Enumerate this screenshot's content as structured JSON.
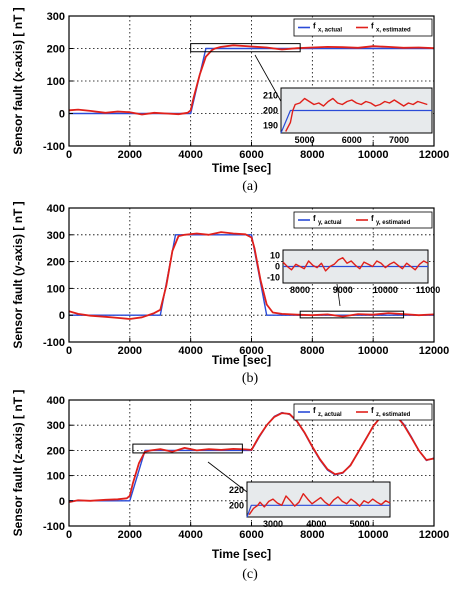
{
  "chart_data": [
    {
      "type": "line",
      "caption": "(a)",
      "xlabel": "Time  [sec]",
      "ylabel": "Sensor fault (x-axis) [ nT ]",
      "xlim": [
        0,
        12000
      ],
      "ylim": [
        -100,
        300
      ],
      "xticks": [
        0,
        2000,
        4000,
        6000,
        8000,
        10000,
        12000
      ],
      "yticks": [
        -100,
        0,
        100,
        200,
        300
      ],
      "grid": true,
      "legend_position": "top-right",
      "colors": {
        "actual": "#2a4bd7",
        "estimated": "#e0201b"
      },
      "series": [
        {
          "name": "f x, actual",
          "name_main": "f",
          "name_sub": "x, actual",
          "color": "#2a4bd7",
          "x": [
            0,
            4000,
            4500,
            12000
          ],
          "y": [
            0,
            0,
            200,
            200
          ]
        },
        {
          "name": "f x, estimated",
          "name_main": "f",
          "name_sub": "x, estimated",
          "color": "#e0201b",
          "x": [
            0,
            300,
            700,
            1200,
            1600,
            2000,
            2400,
            2800,
            3200,
            3600,
            3900,
            4000,
            4100,
            4300,
            4500,
            4700,
            4800,
            5000,
            5400,
            6000,
            6500,
            7000,
            7500,
            8000,
            8500,
            9000,
            9500,
            10000,
            10500,
            11000,
            11500,
            12000
          ],
          "y": [
            10,
            12,
            8,
            2,
            6,
            4,
            -3,
            2,
            0,
            -2,
            2,
            10,
            50,
            120,
            175,
            195,
            200,
            205,
            210,
            206,
            203,
            197,
            201,
            203,
            205,
            204,
            202,
            207,
            205,
            202,
            203,
            201
          ]
        }
      ],
      "annotation_box": {
        "x": [
          4000,
          7600
        ],
        "y": [
          190,
          215
        ]
      },
      "inset": {
        "xlim": [
          4500,
          7700
        ],
        "ylim": [
          185,
          215
        ],
        "xticks": [
          4000,
          5000,
          6000,
          7000
        ],
        "yticks": [
          190,
          200,
          210
        ],
        "series": [
          {
            "color": "#2a4bd7",
            "x": [
              4500,
              4700,
              7700
            ],
            "y": [
              185,
              200,
              200
            ]
          },
          {
            "color": "#e0201b",
            "x": [
              4600,
              4700,
              4750,
              4800,
              4900,
              5000,
              5100,
              5200,
              5300,
              5400,
              5500,
              5600,
              5700,
              5800,
              5900,
              6000,
              6100,
              6200,
              6300,
              6400,
              6500,
              6600,
              6700,
              6800,
              6900,
              7000,
              7100,
              7200,
              7300,
              7400,
              7500,
              7600
            ],
            "y": [
              186,
              192,
              200,
              204,
              205,
              208,
              206,
              204,
              205,
              203,
              206,
              208,
              205,
              204,
              206,
              207,
              205,
              204,
              206,
              205,
              203,
              204,
              206,
              205,
              207,
              205,
              203,
              205,
              204,
              206,
              205,
              204
            ]
          }
        ]
      }
    },
    {
      "type": "line",
      "caption": "(b)",
      "xlabel": "Time  [sec]",
      "ylabel": "Sensor fault (y-axis) [ nT ]",
      "xlim": [
        0,
        12000
      ],
      "ylim": [
        -100,
        400
      ],
      "xticks": [
        0,
        2000,
        4000,
        6000,
        8000,
        10000,
        12000
      ],
      "yticks": [
        -100,
        0,
        100,
        200,
        300,
        400
      ],
      "grid": true,
      "legend_position": "top-right",
      "colors": {
        "actual": "#2a4bd7",
        "estimated": "#e0201b"
      },
      "series": [
        {
          "name": "f y, actual",
          "name_main": "f",
          "name_sub": "y, actual",
          "color": "#2a4bd7",
          "x": [
            0,
            3000,
            3500,
            6000,
            6500,
            12000
          ],
          "y": [
            0,
            0,
            300,
            300,
            0,
            0
          ]
        },
        {
          "name": "f y, estimated",
          "name_main": "f",
          "name_sub": "y, estimated",
          "color": "#e0201b",
          "x": [
            0,
            300,
            700,
            1200,
            1600,
            2000,
            2400,
            2800,
            3000,
            3200,
            3400,
            3600,
            3800,
            4200,
            4600,
            5000,
            5400,
            5800,
            6000,
            6100,
            6300,
            6500,
            6700,
            7000,
            7500,
            8000,
            8500,
            9000,
            9500,
            10000,
            10500,
            11000,
            11500,
            12000
          ],
          "y": [
            15,
            5,
            -2,
            -6,
            -10,
            -14,
            -8,
            8,
            20,
            110,
            240,
            295,
            300,
            305,
            300,
            310,
            305,
            302,
            290,
            250,
            130,
            40,
            10,
            5,
            2,
            0,
            3,
            -5,
            4,
            2,
            8,
            4,
            0,
            3
          ]
        }
      ],
      "annotation_box": {
        "x": [
          7600,
          11000
        ],
        "y": [
          -10,
          15
        ]
      },
      "inset": {
        "xlim": [
          7600,
          11000
        ],
        "ylim": [
          -15,
          15
        ],
        "xticks": [
          8000,
          9000,
          10000,
          11000
        ],
        "yticks": [
          -10,
          0,
          10
        ],
        "series": [
          {
            "color": "#2a4bd7",
            "x": [
              7600,
              11000
            ],
            "y": [
              0,
              0
            ]
          },
          {
            "color": "#e0201b",
            "x": [
              7600,
              7700,
              7800,
              7900,
              8000,
              8100,
              8200,
              8300,
              8400,
              8500,
              8600,
              8700,
              8800,
              8900,
              9000,
              9100,
              9200,
              9300,
              9400,
              9500,
              9600,
              9700,
              9800,
              9900,
              10000,
              10100,
              10200,
              10300,
              10400,
              10500,
              10600,
              10700,
              10800,
              10900,
              11000
            ],
            "y": [
              4,
              0,
              -3,
              2,
              0,
              -2,
              5,
              1,
              -1,
              3,
              -4,
              0,
              2,
              6,
              8,
              3,
              5,
              1,
              -2,
              4,
              2,
              0,
              5,
              3,
              -1,
              2,
              4,
              1,
              -2,
              3,
              0,
              -3,
              2,
              5,
              3
            ]
          }
        ]
      }
    },
    {
      "type": "line",
      "caption": "(c)",
      "xlabel": "Time  [sec]",
      "ylabel": "Sensor fault (z-axis) [ nT ]",
      "xlim": [
        0,
        12000
      ],
      "ylim": [
        -100,
        400
      ],
      "xticks": [
        0,
        2000,
        4000,
        6000,
        8000,
        10000,
        12000
      ],
      "yticks": [
        -100,
        0,
        100,
        200,
        300,
        400
      ],
      "grid": true,
      "legend_position": "top-right",
      "colors": {
        "actual": "#2a4bd7",
        "estimated": "#e0201b"
      },
      "series": [
        {
          "name": "f z, actual",
          "name_main": "f",
          "name_sub": "z, actual",
          "color": "#2a4bd7",
          "x": [
            0,
            2000,
            2500,
            6000,
            6250,
            6500,
            6750,
            7000,
            7250,
            7500,
            7750,
            8000,
            8250,
            8500,
            8750,
            9000,
            9250,
            9500,
            9750,
            10000,
            10250,
            10500,
            10750,
            11000,
            11250,
            11500,
            11750,
            12000
          ],
          "y": [
            0,
            0,
            200,
            200,
            252,
            300,
            335,
            350,
            343,
            314,
            268,
            213,
            162,
            122,
            103,
            110,
            142,
            190,
            245,
            295,
            335,
            350,
            340,
            305,
            255,
            200,
            160,
            170
          ]
        },
        {
          "name": "f z, estimated",
          "name_main": "f",
          "name_sub": "z, estimated",
          "color": "#e0201b",
          "x": [
            0,
            300,
            700,
            1200,
            1600,
            1900,
            2000,
            2100,
            2300,
            2500,
            2700,
            3000,
            3400,
            3800,
            4200,
            4600,
            5000,
            5400,
            5800,
            6000,
            6250,
            6500,
            6750,
            7000,
            7250,
            7500,
            7750,
            8000,
            8250,
            8500,
            8750,
            9000,
            9250,
            9500,
            9750,
            10000,
            10250,
            10500,
            10750,
            11000,
            11250,
            11500,
            11750,
            12000
          ],
          "y": [
            -5,
            2,
            0,
            4,
            6,
            10,
            20,
            70,
            150,
            195,
            200,
            205,
            195,
            210,
            200,
            205,
            202,
            206,
            204,
            202,
            255,
            300,
            333,
            348,
            345,
            315,
            270,
            215,
            165,
            125,
            105,
            112,
            140,
            192,
            243,
            296,
            333,
            348,
            338,
            302,
            252,
            200,
            162,
            168
          ]
        }
      ],
      "annotation_box": {
        "x": [
          2100,
          5700
        ],
        "y": [
          190,
          225
        ]
      },
      "inset": {
        "xlim": [
          2400,
          5700
        ],
        "ylim": [
          185,
          230
        ],
        "xticks": [
          3000,
          4000,
          5000
        ],
        "yticks": [
          200,
          220
        ],
        "series": [
          {
            "color": "#2a4bd7",
            "x": [
              2400,
              2500,
              5700
            ],
            "y": [
              185,
              200,
              200
            ]
          },
          {
            "color": "#e0201b",
            "x": [
              2450,
              2550,
              2650,
              2700,
              2800,
              2900,
              3000,
              3100,
              3200,
              3300,
              3400,
              3500,
              3600,
              3700,
              3800,
              3900,
              4000,
              4100,
              4200,
              4300,
              4400,
              4500,
              4600,
              4700,
              4800,
              4900,
              5000,
              5100,
              5200,
              5300,
              5400,
              5500,
              5600,
              5700
            ],
            "y": [
              188,
              196,
              200,
              204,
              198,
              205,
              208,
              203,
              200,
              212,
              206,
              199,
              204,
              215,
              208,
              202,
              206,
              210,
              204,
              200,
              207,
              211,
              205,
              202,
              208,
              204,
              199,
              206,
              203,
              208,
              204,
              201,
              206,
              203
            ]
          }
        ]
      }
    }
  ]
}
